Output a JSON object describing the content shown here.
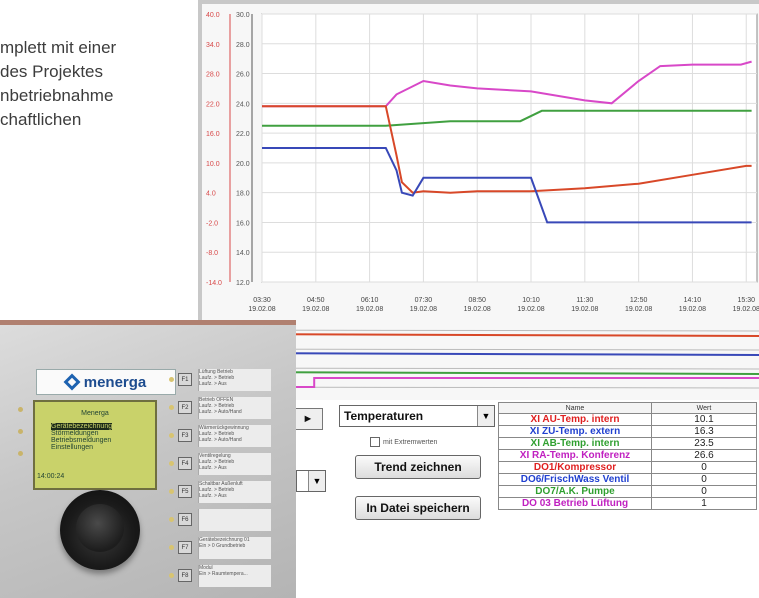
{
  "article": {
    "lines": [
      "mplett mit einer",
      "des Projektes",
      "nbetriebnahme",
      "chaftlichen"
    ]
  },
  "chart_data": {
    "type": "line",
    "y_axis_primary": {
      "color": "#d84848",
      "ticks": [
        "40.0",
        "34.0",
        "28.0",
        "22.0",
        "16.0",
        "10.0",
        "4.0",
        "-2.0",
        "-8.0",
        "-14.0"
      ]
    },
    "y_axis_secondary": {
      "ticks": [
        "30.0",
        "28.0",
        "26.0",
        "24.0",
        "22.0",
        "20.0",
        "18.0",
        "16.0",
        "14.0",
        "12.0"
      ],
      "ylim": [
        12,
        30
      ]
    },
    "x_ticks": [
      {
        "time": "03:30",
        "date": "19.02.08"
      },
      {
        "time": "04:50",
        "date": "19.02.08"
      },
      {
        "time": "06:10",
        "date": "19.02.08"
      },
      {
        "time": "07:30",
        "date": "19.02.08"
      },
      {
        "time": "08:50",
        "date": "19.02.08"
      },
      {
        "time": "10:10",
        "date": "19.02.08"
      },
      {
        "time": "11:30",
        "date": "19.02.08"
      },
      {
        "time": "12:50",
        "date": "19.02.08"
      },
      {
        "time": "14:10",
        "date": "19.02.08"
      },
      {
        "time": "15:30",
        "date": "19.02.08"
      }
    ],
    "xlim": [
      0,
      9.2
    ],
    "grid": true,
    "series": [
      {
        "color": "#d848c8",
        "x": [
          0,
          2.3,
          2.5,
          3,
          3.5,
          4,
          5,
          6,
          6.5,
          7,
          7.4,
          8,
          8.9,
          9.1
        ],
        "values": [
          23.8,
          23.8,
          24.6,
          25.5,
          25.2,
          25.0,
          24.8,
          24.2,
          24.0,
          25.5,
          26.5,
          26.6,
          26.6,
          26.8
        ]
      },
      {
        "color": "#40a040",
        "x": [
          0,
          2.3,
          3.5,
          4.8,
          5.2,
          9.1
        ],
        "values": [
          22.5,
          22.5,
          22.8,
          22.8,
          23.5,
          23.5
        ]
      },
      {
        "color": "#d84828",
        "x": [
          0,
          2.3,
          2.5,
          2.6,
          2.8,
          3,
          3.5,
          4,
          5,
          6,
          7,
          8,
          9,
          9.1
        ],
        "values": [
          23.8,
          23.8,
          20.5,
          18.7,
          18.0,
          18.1,
          18.0,
          18.1,
          18.1,
          18.3,
          18.6,
          19.2,
          19.8,
          19.8
        ]
      },
      {
        "color": "#3848b8",
        "x": [
          0,
          2.3,
          2.5,
          2.6,
          2.8,
          3,
          3.4,
          5.0,
          5.3,
          9.1
        ],
        "values": [
          21.0,
          21.0,
          19.5,
          18.0,
          17.8,
          19.0,
          19.0,
          19.0,
          16.0,
          16.0
        ]
      }
    ]
  },
  "digital_traces": [
    {
      "color": "#d84828",
      "value": 1
    },
    {
      "color": "#3848b8",
      "value": 1
    },
    {
      "color": "#40a040",
      "value": 1
    },
    {
      "color": "#d848c8",
      "value": 0,
      "step_to": 1,
      "step_at": 0.2
    }
  ],
  "controls": {
    "play": "►",
    "select_value": "Temperaturen",
    "checkbox_label": "mit Extremwerten",
    "trend_button": "Trend zeichnen",
    "file_button": "In Datei speichern"
  },
  "table": {
    "headers": [
      "Name",
      "Wert"
    ],
    "rows": [
      {
        "name": "XI AU-Temp. intern",
        "value": "10.1",
        "color": "#e02020"
      },
      {
        "name": "XI ZU-Temp. extern",
        "value": "16.3",
        "color": "#2040d0"
      },
      {
        "name": "XI AB-Temp. intern",
        "value": "23.5",
        "color": "#30a030"
      },
      {
        "name": "XI RA-Temp. Konferenz",
        "value": "26.6",
        "color": "#c020c0"
      },
      {
        "name": "DO1/Kompressor",
        "value": "0",
        "color": "#e02020"
      },
      {
        "name": "DO6/FrischWass Ventil",
        "value": "0",
        "color": "#2040d0"
      },
      {
        "name": "DO7/A.K. Pumpe",
        "value": "0",
        "color": "#30a030"
      },
      {
        "name": "DO 03 Betrieb Lüftung",
        "value": "1",
        "color": "#c020c0"
      }
    ]
  },
  "device": {
    "brand": "menerga",
    "display": {
      "title": "Menerga",
      "menu": [
        "Gerätebezeichnung",
        "Störmeldungen",
        "Betriebsmeldungen",
        "Einstellungen"
      ],
      "time": "14:00:24"
    },
    "fkeys": [
      "F1",
      "F2",
      "F3",
      "F4",
      "F5",
      "F6",
      "F7",
      "F8"
    ],
    "fkey_labels": [
      [
        "Lüftung Betrieb",
        "Laufz. > Betrieb",
        "Laufz. > Aus"
      ],
      [
        "Betrieb OFFEN",
        "Laufz. > Betrieb",
        "Laufz. > Auto/Hand"
      ],
      [
        "Wärmerückgewinnung",
        "Laufz. > Betrieb",
        "Laufz. > Auto/Hand"
      ],
      [
        "Ventilregelung",
        "Laufz. > Betrieb",
        "Laufz. > Aus"
      ],
      [
        "Schaltbar Außenluft",
        "Laufz. > Betrieb",
        "Laufz. > Aus"
      ],
      [
        "",
        "",
        ""
      ],
      [
        "Gerätebezeichnung 01",
        "",
        "Ein > 0 Grundbetrieb"
      ],
      [
        "Modul",
        "Ein > Raumtempera...",
        ""
      ]
    ]
  }
}
